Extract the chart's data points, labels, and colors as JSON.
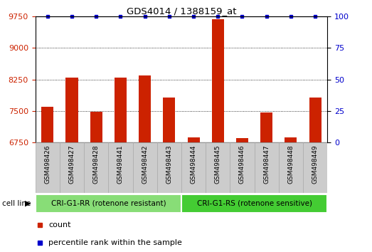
{
  "title": "GDS4014 / 1388159_at",
  "samples": [
    "GSM498426",
    "GSM498427",
    "GSM498428",
    "GSM498441",
    "GSM498442",
    "GSM498443",
    "GSM498444",
    "GSM498445",
    "GSM498446",
    "GSM498447",
    "GSM498448",
    "GSM498449"
  ],
  "counts": [
    7600,
    8300,
    7480,
    8300,
    8350,
    7820,
    6870,
    9680,
    6850,
    7470,
    6870,
    7820
  ],
  "percentile_ranks": [
    100,
    100,
    100,
    100,
    100,
    100,
    100,
    100,
    100,
    100,
    100,
    100
  ],
  "ylim_left": [
    6750,
    9750
  ],
  "ylim_right": [
    0,
    100
  ],
  "yticks_left": [
    6750,
    7500,
    8250,
    9000,
    9750
  ],
  "yticks_right": [
    0,
    25,
    50,
    75,
    100
  ],
  "bar_color": "#cc2200",
  "dot_color": "#0000cc",
  "group1_label": "CRI-G1-RR (rotenone resistant)",
  "group2_label": "CRI-G1-RS (rotenone sensitive)",
  "group1_count": 6,
  "group2_count": 6,
  "group1_color": "#88dd77",
  "group2_color": "#44cc33",
  "cell_line_label": "cell line",
  "legend_count_label": "count",
  "legend_percentile_label": "percentile rank within the sample",
  "background_color": "#ffffff",
  "plot_bg_color": "#ffffff",
  "tick_label_color_left": "#cc2200",
  "tick_label_color_right": "#0000cc",
  "title_color": "#000000",
  "xtick_bg_color": "#cccccc",
  "xtick_border_color": "#aaaaaa"
}
